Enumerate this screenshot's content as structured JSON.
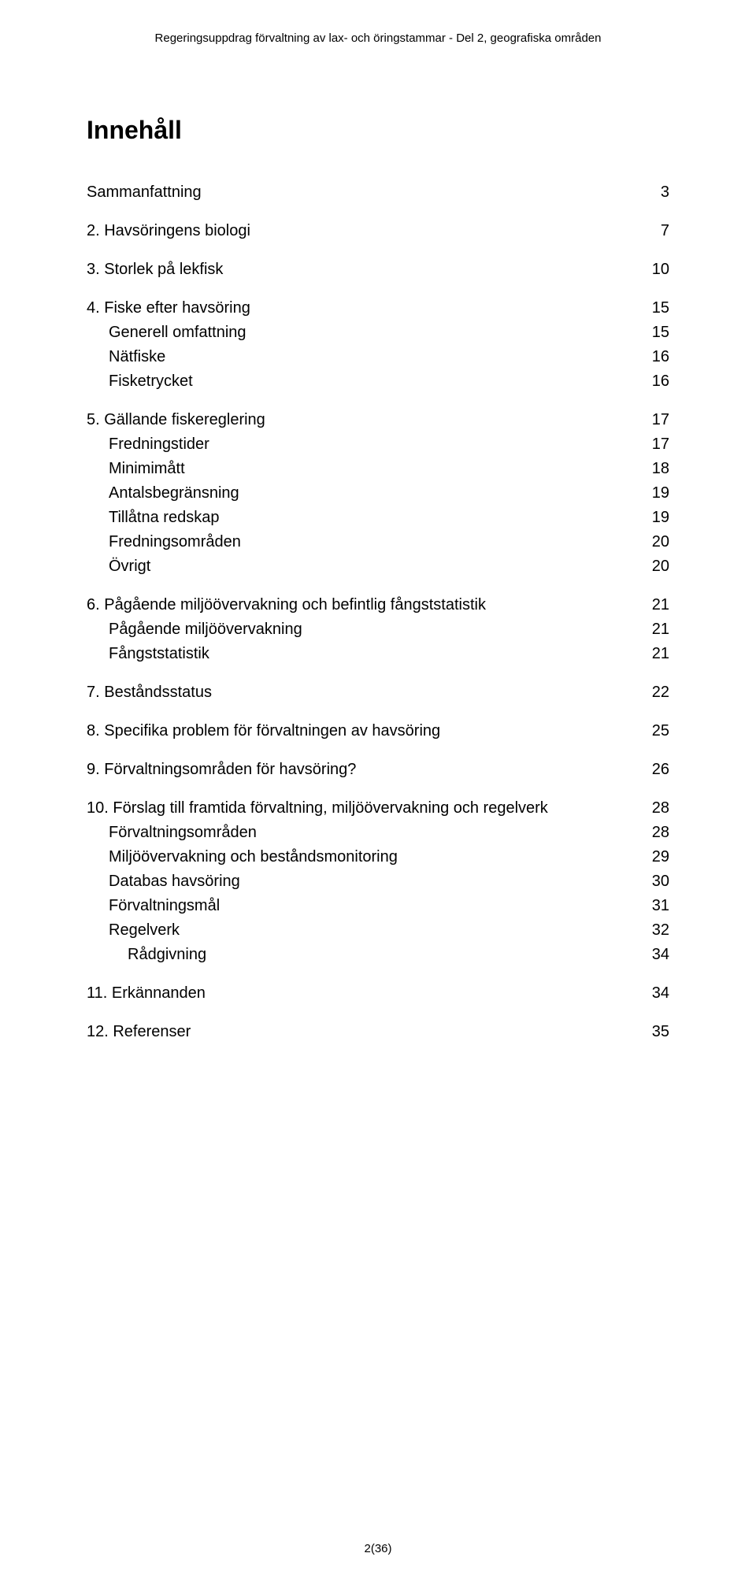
{
  "header": {
    "text": "Regeringsuppdrag förvaltning av lax- och öringstammar  -  Del 2, geografiska områden"
  },
  "title": "Innehåll",
  "footer": {
    "page_label": "2(36)"
  },
  "toc": [
    {
      "label": "Sammanfattning",
      "page": "3",
      "indent": 0,
      "gap": false
    },
    {
      "label": "2.    Havsöringens biologi",
      "page": "7",
      "indent": 0,
      "gap": true
    },
    {
      "label": "3.    Storlek på lekfisk",
      "page": "10",
      "indent": 0,
      "gap": true
    },
    {
      "label": "4.    Fiske efter havsöring",
      "page": "15",
      "indent": 0,
      "gap": true
    },
    {
      "label": "Generell omfattning",
      "page": "15",
      "indent": 1,
      "gap": false
    },
    {
      "label": "Nätfiske",
      "page": "16",
      "indent": 1,
      "gap": false
    },
    {
      "label": "Fisketrycket",
      "page": "16",
      "indent": 1,
      "gap": false
    },
    {
      "label": "5.    Gällande fiskereglering",
      "page": "17",
      "indent": 0,
      "gap": true
    },
    {
      "label": "Fredningstider",
      "page": "17",
      "indent": 1,
      "gap": false
    },
    {
      "label": "Minimimått",
      "page": "18",
      "indent": 1,
      "gap": false
    },
    {
      "label": "Antalsbegränsning",
      "page": "19",
      "indent": 1,
      "gap": false
    },
    {
      "label": "Tillåtna redskap",
      "page": "19",
      "indent": 1,
      "gap": false
    },
    {
      "label": "Fredningsområden",
      "page": "20",
      "indent": 1,
      "gap": false
    },
    {
      "label": "Övrigt",
      "page": "20",
      "indent": 1,
      "gap": false
    },
    {
      "label": "6.    Pågående miljöövervakning och befintlig fångststatistik",
      "page": "21",
      "indent": 0,
      "gap": true
    },
    {
      "label": "Pågående miljöövervakning",
      "page": "21",
      "indent": 1,
      "gap": false
    },
    {
      "label": "Fångststatistik",
      "page": "21",
      "indent": 1,
      "gap": false
    },
    {
      "label": "7.    Beståndsstatus",
      "page": "22",
      "indent": 0,
      "gap": true
    },
    {
      "label": "8.    Specifika problem för förvaltningen av havsöring",
      "page": "25",
      "indent": 0,
      "gap": true
    },
    {
      "label": "9.    Förvaltningsområden för havsöring?",
      "page": "26",
      "indent": 0,
      "gap": true
    },
    {
      "label": "10.  Förslag till framtida förvaltning, miljöövervakning och regelverk",
      "page": "28",
      "indent": 0,
      "gap": true
    },
    {
      "label": "Förvaltningsområden",
      "page": "28",
      "indent": 1,
      "gap": false
    },
    {
      "label": "Miljöövervakning och beståndsmonitoring",
      "page": "29",
      "indent": 1,
      "gap": false
    },
    {
      "label": "Databas havsöring",
      "page": "30",
      "indent": 1,
      "gap": false
    },
    {
      "label": "Förvaltningsmål",
      "page": "31",
      "indent": 1,
      "gap": false
    },
    {
      "label": "Regelverk",
      "page": "32",
      "indent": 1,
      "gap": false
    },
    {
      "label": "Rådgivning",
      "page": "34",
      "indent": 2,
      "gap": false
    },
    {
      "label": "11.  Erkännanden",
      "page": "34",
      "indent": 0,
      "gap": true
    },
    {
      "label": "12.  Referenser",
      "page": "35",
      "indent": 0,
      "gap": true
    }
  ]
}
